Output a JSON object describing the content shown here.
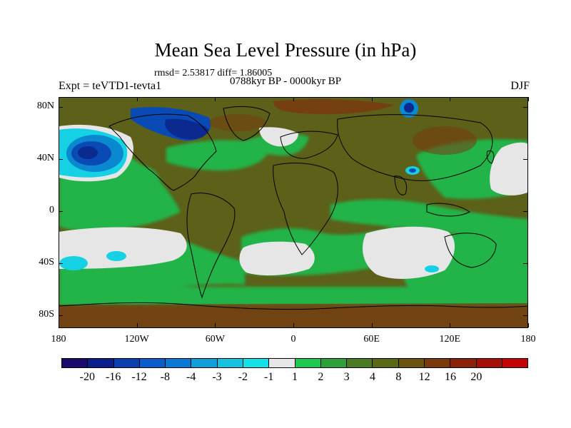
{
  "title": "Mean Sea Level Pressure (in hPa)",
  "stats": "rmsd= 2.53817 diff= 1.86005",
  "period": "0788kyr BP - 0000kyr BP",
  "experiment": "Expt = teVTD1-tevta1",
  "season": "DJF",
  "latitude_labels": [
    "80N",
    "40N",
    "0",
    "40S",
    "80S"
  ],
  "longitude_labels": [
    "180",
    "120W",
    "60W",
    "0",
    "60E",
    "120E",
    "180"
  ],
  "colorbar": {
    "colors": [
      "#1a0a6b",
      "#0a1e8c",
      "#0a3fb0",
      "#0a5cc8",
      "#0a78d4",
      "#129ed8",
      "#16c0e0",
      "#14e0e8",
      "#e6e6e6",
      "#1ec850",
      "#2ea03a",
      "#4a7a22",
      "#5a6a14",
      "#6a5410",
      "#7a3a0c",
      "#8a220a",
      "#a41008",
      "#c40404"
    ],
    "labels": [
      "-20",
      "-16",
      "-12",
      "-8",
      "-4",
      "-3",
      "-2",
      "-1",
      "1",
      "2",
      "3",
      "4",
      "8",
      "12",
      "16",
      "20"
    ]
  },
  "map_colors": {
    "background": "#5c6018",
    "positive_green": "#24b44a",
    "near_zero": "#e6e6e6",
    "weak_negative": "#16d0e4",
    "mid_negative": "#0a88d0",
    "strong_negative": "#0a4ab4",
    "deep_negative": "#0a2a90",
    "strong_positive": "#7a3a10",
    "coast": "#000000"
  }
}
